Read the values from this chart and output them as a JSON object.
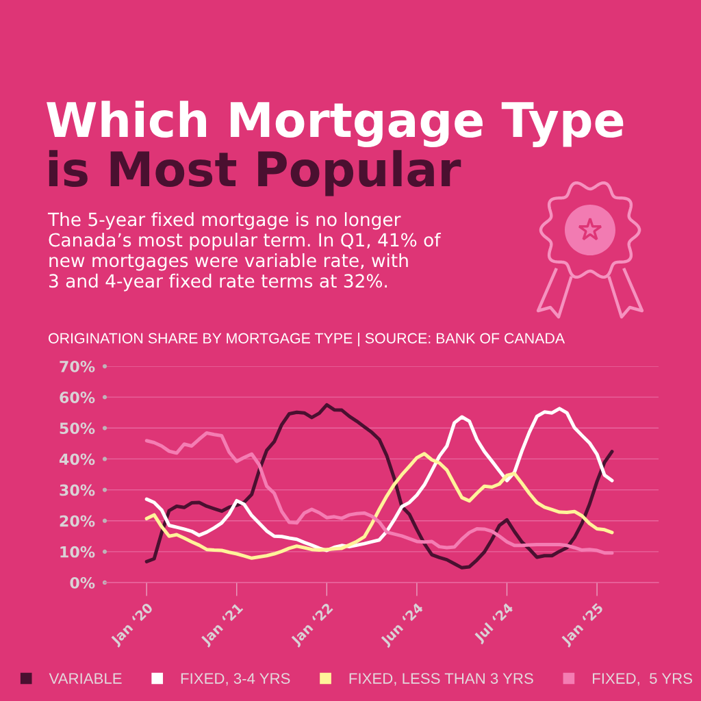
{
  "chart_data": {
    "type": "line",
    "title": "Which Mortgage Type\nis Most Popular",
    "subtitle": "The 5-year fixed mortgage is no longer\nCanada’s most popular term. In Q1, 41% of\nnew mortgages were variable rate, with\n3 and 4-year fixed rate terms at 32%.",
    "annotations": [
      "ORIGINATION SHARE BY MORTGAGE TYPE | SOURCE: BANK OF CANADA"
    ],
    "categories": [
      "Jan ‘20",
      null,
      null,
      null,
      null,
      null,
      null,
      null,
      null,
      null,
      null,
      null,
      "Jan ‘21",
      null,
      null,
      null,
      null,
      null,
      null,
      null,
      null,
      null,
      null,
      null,
      "Jan ‘22",
      null,
      null,
      null,
      null,
      null,
      null,
      null,
      null,
      null,
      null,
      null,
      "Jun ‘24",
      null,
      null,
      null,
      null,
      null,
      null,
      null,
      null,
      null,
      null,
      null,
      "Jul ‘24",
      null,
      null,
      null,
      null,
      null,
      null,
      null,
      null,
      null,
      null,
      null,
      "Jan ‘25",
      null,
      null
    ],
    "series": [
      {
        "name": "VARIABLE",
        "color": "#4a1030",
        "values": [
          6.8,
          7.7,
          16.1,
          23.3,
          24.7,
          24.3,
          25.8,
          25.9,
          24.7,
          23.9,
          23.1,
          24.4,
          25.0,
          26.0,
          28.5,
          36.3,
          42.8,
          45.6,
          51.1,
          54.6,
          55.1,
          54.9,
          53.4,
          54.8,
          57.5,
          55.9,
          55.8,
          53.8,
          52.2,
          50.4,
          48.6,
          46.3,
          41.0,
          33.6,
          24.6,
          22.1,
          17.2,
          12.6,
          9.0,
          8.1,
          7.4,
          6.1,
          4.8,
          5.1,
          7.3,
          9.9,
          13.9,
          18.5,
          20.3,
          16.5,
          13.1,
          10.8,
          8.2,
          8.7,
          8.7,
          10.1,
          11.3,
          14.6,
          19.2,
          25.3,
          32.7,
          38.9,
          42.4
        ]
      },
      {
        "name": "FIXED, 3-4 YRS",
        "color": "#ffffff",
        "values": [
          27.0,
          25.9,
          23.5,
          18.5,
          17.9,
          17.3,
          16.6,
          15.3,
          16.3,
          17.7,
          19.3,
          22.2,
          26.5,
          25.3,
          21.7,
          19.2,
          16.7,
          15.0,
          14.9,
          14.4,
          14.0,
          13.0,
          12.1,
          11.1,
          10.4,
          11.4,
          12.0,
          11.6,
          12.1,
          12.6,
          13.2,
          13.8,
          16.6,
          20.4,
          24.6,
          25.9,
          28.3,
          31.6,
          36.2,
          40.9,
          44.2,
          51.7,
          53.6,
          52.2,
          46.3,
          42.4,
          39.3,
          36.1,
          33.0,
          35.7,
          42.6,
          48.7,
          53.8,
          55.2,
          54.9,
          56.3,
          54.9,
          50.1,
          47.6,
          45.2,
          41.5,
          34.8,
          33.0
        ]
      },
      {
        "name": "FIXED, LESS THAN 3 YRS",
        "color": "#fff39a",
        "values": [
          20.7,
          21.9,
          18.1,
          15.0,
          15.5,
          14.4,
          13.2,
          12.1,
          10.7,
          10.5,
          10.4,
          9.8,
          9.3,
          8.6,
          7.9,
          8.3,
          8.7,
          9.3,
          10.1,
          11.1,
          11.8,
          11.3,
          10.7,
          10.5,
          10.7,
          10.9,
          11.1,
          12.2,
          13.3,
          14.8,
          19.0,
          23.7,
          28.0,
          31.8,
          34.9,
          37.6,
          40.4,
          41.7,
          39.7,
          38.7,
          36.4,
          31.9,
          27.5,
          26.4,
          28.9,
          31.2,
          30.9,
          31.9,
          34.7,
          35.3,
          32.1,
          28.8,
          25.9,
          24.4,
          23.6,
          22.8,
          22.7,
          23.0,
          21.6,
          19.1,
          17.4,
          17.1,
          16.2
        ]
      },
      {
        "name": "FIXED,  5 YRS",
        "color": "#f47db3",
        "values": [
          45.9,
          45.3,
          44.2,
          42.5,
          41.9,
          44.8,
          44.2,
          46.4,
          48.4,
          47.9,
          47.5,
          42.2,
          39.2,
          40.5,
          41.6,
          38.1,
          31.2,
          28.9,
          23.0,
          19.5,
          19.3,
          22.5,
          23.7,
          22.6,
          21.0,
          21.3,
          20.8,
          21.9,
          22.3,
          22.5,
          21.5,
          19.6,
          16.3,
          15.7,
          15.1,
          14.2,
          13.3,
          13.1,
          13.3,
          11.6,
          11.3,
          11.5,
          14.1,
          16.2,
          17.4,
          17.3,
          16.6,
          15.0,
          13.2,
          12.0,
          12.0,
          12.2,
          12.3,
          12.3,
          12.3,
          12.3,
          12.0,
          11.3,
          10.5,
          10.7,
          10.4,
          9.6,
          9.6
        ]
      }
    ],
    "ylim": [
      0,
      70
    ],
    "yticks": [
      {
        "value": 0,
        "label": "0%"
      },
      {
        "value": 10,
        "label": "10%"
      },
      {
        "value": 20,
        "label": "20%"
      },
      {
        "value": 30,
        "label": "30%"
      },
      {
        "value": 40,
        "label": "40%"
      },
      {
        "value": 50,
        "label": "50%"
      },
      {
        "value": 60,
        "label": "60%"
      },
      {
        "value": 70,
        "label": "70%"
      }
    ],
    "grid": "y",
    "legend": "bottom",
    "marker": "none",
    "line_style": "solid"
  }
}
